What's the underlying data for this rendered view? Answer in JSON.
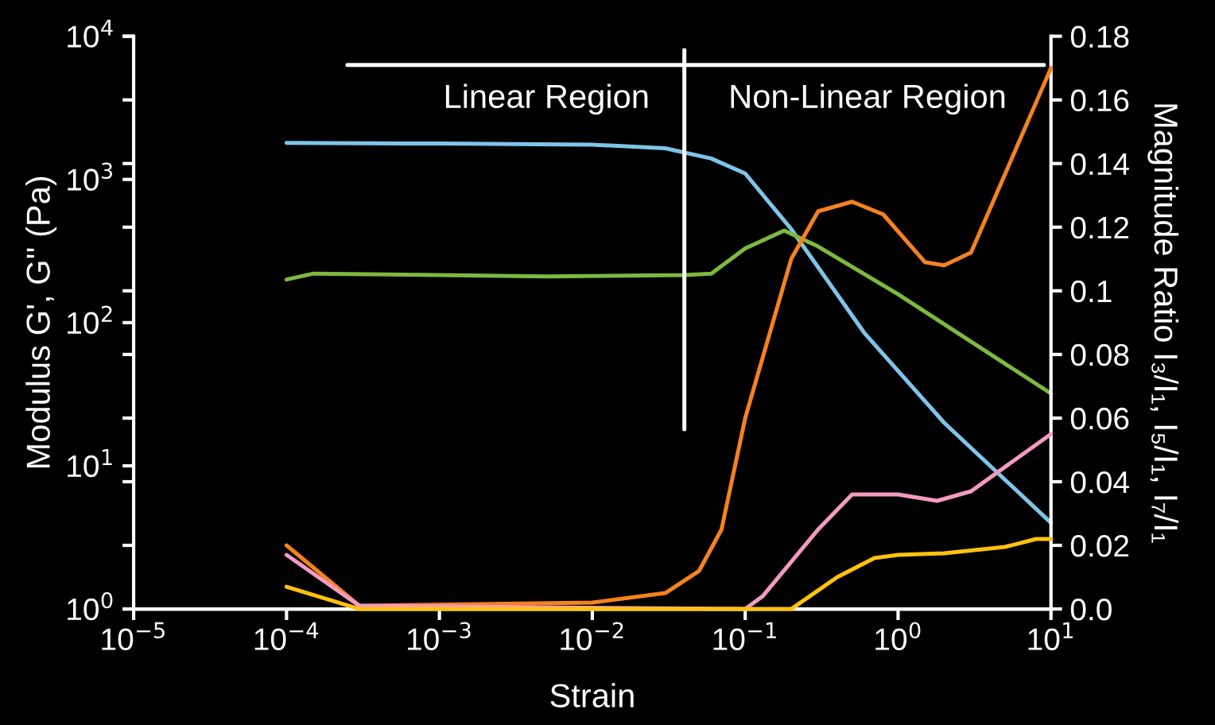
{
  "chart_data": {
    "type": "line",
    "xlabel": "Strain",
    "ylabel": "Modulus G', G'' (Pa)",
    "y2label": "Magnitude Ratio I₃/I₁, I₅/I₁, I₇/I₁",
    "log": "xy",
    "xlim": [
      1e-05,
      10
    ],
    "ylim": [
      1,
      10000
    ],
    "y2lim": [
      0,
      0.18
    ],
    "xticks": [
      {
        "value": 1e-05,
        "label": "10$^{−5}$"
      },
      {
        "value": 0.0001,
        "label": "10$^{−4}$"
      },
      {
        "value": 0.001,
        "label": "10$^{−3}$"
      },
      {
        "value": 0.01,
        "label": "10$^{−2}$"
      },
      {
        "value": 0.1,
        "label": "10$^{−1}$"
      },
      {
        "value": 1,
        "label": "10$^{0}$"
      },
      {
        "value": 10,
        "label": "10$^{1}$"
      }
    ],
    "yticks": [
      {
        "value": 1,
        "label": "10$^{0}$"
      },
      {
        "value": 10,
        "label": "10$^{1}$"
      },
      {
        "value": 100,
        "label": "10$^{2}$"
      },
      {
        "value": 1000,
        "label": "10$^{3}$"
      },
      {
        "value": 10000,
        "label": "10$^{4}$"
      }
    ],
    "y2ticks": [
      {
        "value": 0,
        "label": "0.0"
      },
      0.02,
      0.04,
      0.06,
      0.08,
      {
        "value": 0.1,
        "label": "0.1"
      },
      0.12,
      0.14,
      0.16,
      0.18
    ],
    "grid": false,
    "legend": false,
    "marker": "none",
    "line_style": "solid",
    "annotations": [
      "Linear Region",
      "Non-Linear Region"
    ],
    "series": [
      {
        "color": "#7fc4ea",
        "x": [
          0.0001,
          0.001,
          0.01,
          0.03,
          0.06,
          0.1,
          0.2,
          0.6,
          2,
          10
        ],
        "values": [
          1800,
          1780,
          1750,
          1650,
          1400,
          1100,
          450,
          85,
          20,
          4
        ]
      },
      {
        "color": "#7db93f",
        "x": [
          0.0001,
          0.00015,
          0.001,
          0.005,
          0.04,
          0.06,
          0.1,
          0.18,
          0.3,
          1,
          10
        ],
        "values": [
          200,
          220,
          215,
          210,
          215,
          220,
          330,
          440,
          340,
          158,
          32
        ]
      },
      {
        "color": "#f5821f",
        "axis": "y2",
        "x": [
          0.0001,
          0.0003,
          0.01,
          0.03,
          0.05,
          0.07,
          0.1,
          0.2,
          0.3,
          0.5,
          0.8,
          1.5,
          2,
          3,
          10
        ],
        "values": [
          0.02,
          0.001,
          0.002,
          0.005,
          0.012,
          0.025,
          0.06,
          0.11,
          0.125,
          0.128,
          0.124,
          0.109,
          0.108,
          0.112,
          0.17
        ]
      },
      {
        "color": "#f49ac1",
        "axis": "y2",
        "x": [
          0.0001,
          0.0003,
          0.1,
          0.13,
          0.3,
          0.5,
          1,
          1.8,
          3,
          10
        ],
        "values": [
          0.017,
          0.001,
          0.0,
          0.004,
          0.025,
          0.036,
          0.036,
          0.034,
          0.037,
          0.055
        ]
      },
      {
        "color": "#ffc20e",
        "axis": "y2",
        "x": [
          0.0001,
          0.0003,
          0.2,
          0.4,
          0.7,
          1,
          2,
          5,
          8,
          10
        ],
        "values": [
          0.007,
          0.0,
          0.0,
          0.01,
          0.016,
          0.017,
          0.0175,
          0.0195,
          0.022,
          0.022
        ]
      },
      {
        "color": "#ffffff",
        "x": [
          0.00025,
          9
        ],
        "values": [
          6300,
          6300
        ]
      },
      {
        "color": "#ffffff",
        "x": [
          0.04,
          0.04
        ],
        "values": [
          18,
          8000
        ]
      }
    ]
  }
}
